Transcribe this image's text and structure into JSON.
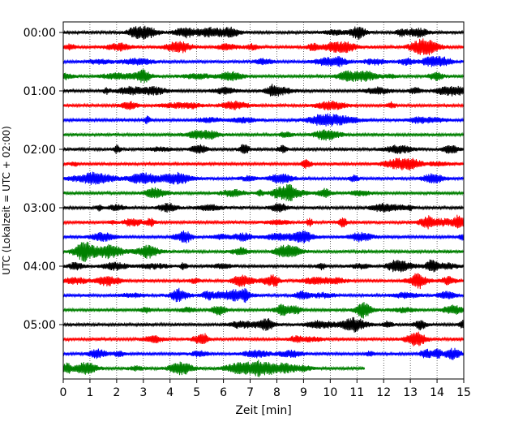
{
  "chart_data": {
    "type": "line",
    "title": "",
    "xlabel": "Zeit  [min]",
    "ylabel": "UTC (Lokalzeit = UTC + 02:00)",
    "xlim": [
      0,
      15
    ],
    "x_ticks": [
      0,
      1,
      2,
      3,
      4,
      5,
      6,
      7,
      8,
      9,
      10,
      11,
      12,
      13,
      14,
      15
    ],
    "y_tick_labels": [
      "00:00",
      "01:00",
      "02:00",
      "03:00",
      "04:00",
      "05:00"
    ],
    "minutes_per_trace": 15,
    "trace_colors": [
      "#000000",
      "#ff0000",
      "#0000ff",
      "#008000"
    ],
    "grid": {
      "vertical_dotted": true
    },
    "legend": "none",
    "traces": [
      {
        "start": "00:00",
        "end_minute": 15,
        "color": "#000000"
      },
      {
        "start": "00:15",
        "end_minute": 15,
        "color": "#ff0000"
      },
      {
        "start": "00:30",
        "end_minute": 15,
        "color": "#0000ff"
      },
      {
        "start": "00:45",
        "end_minute": 15,
        "color": "#008000"
      },
      {
        "start": "01:00",
        "end_minute": 15,
        "color": "#000000"
      },
      {
        "start": "01:15",
        "end_minute": 15,
        "color": "#ff0000"
      },
      {
        "start": "01:30",
        "end_minute": 15,
        "color": "#0000ff"
      },
      {
        "start": "01:45",
        "end_minute": 15,
        "color": "#008000"
      },
      {
        "start": "02:00",
        "end_minute": 15,
        "color": "#000000"
      },
      {
        "start": "02:15",
        "end_minute": 15,
        "color": "#ff0000"
      },
      {
        "start": "02:30",
        "end_minute": 15,
        "color": "#0000ff"
      },
      {
        "start": "02:45",
        "end_minute": 15,
        "color": "#008000"
      },
      {
        "start": "03:00",
        "end_minute": 15,
        "color": "#000000"
      },
      {
        "start": "03:15",
        "end_minute": 15,
        "color": "#ff0000"
      },
      {
        "start": "03:30",
        "end_minute": 15,
        "color": "#0000ff"
      },
      {
        "start": "03:45",
        "end_minute": 15,
        "color": "#008000"
      },
      {
        "start": "04:00",
        "end_minute": 15,
        "color": "#000000"
      },
      {
        "start": "04:15",
        "end_minute": 15,
        "color": "#ff0000"
      },
      {
        "start": "04:30",
        "end_minute": 15,
        "color": "#0000ff"
      },
      {
        "start": "04:45",
        "end_minute": 15,
        "color": "#008000"
      },
      {
        "start": "05:00",
        "end_minute": 15,
        "color": "#000000"
      },
      {
        "start": "05:15",
        "end_minute": 15,
        "color": "#ff0000"
      },
      {
        "start": "05:30",
        "end_minute": 15,
        "color": "#0000ff"
      },
      {
        "start": "05:45",
        "end_minute": 11.3,
        "color": "#008000"
      }
    ]
  }
}
